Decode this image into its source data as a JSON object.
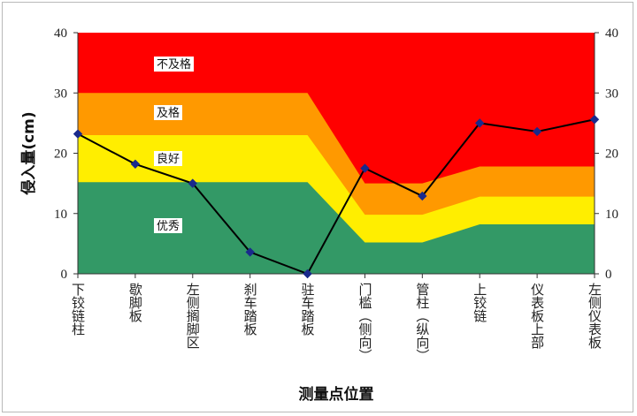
{
  "chart_data": {
    "type": "line",
    "ylabel": "侵入量(cm)",
    "xlabel": "测量点位置",
    "ylim": [
      0,
      40
    ],
    "yticks": [
      "0",
      "10",
      "20",
      "30",
      "40"
    ],
    "categories": [
      "下铰链柱",
      "歇脚板",
      "左侧搁脚区",
      "刹车踏板",
      "驻车踏板",
      "门槛（侧向）",
      "管柱（纵向）",
      "上铰链",
      "仪表板上部",
      "左侧仪表板"
    ],
    "series": [
      {
        "values": [
          23.2,
          18.2,
          15.0,
          3.6,
          0.0,
          17.5,
          12.9,
          25.0,
          23.6,
          25.6
        ]
      }
    ],
    "bands": [
      {
        "label": "优秀",
        "color": "#339966",
        "upper": [
          15.2,
          15.2,
          15.2,
          15.2,
          15.2,
          5.2,
          5.2,
          8.2,
          8.2,
          8.2
        ]
      },
      {
        "label": "良好",
        "color": "#ffee00",
        "upper": [
          23.0,
          23.0,
          23.0,
          23.0,
          23.0,
          9.8,
          9.8,
          12.8,
          12.8,
          12.8
        ]
      },
      {
        "label": "及格",
        "color": "#ff9900",
        "upper": [
          30.0,
          30.0,
          30.0,
          30.0,
          30.0,
          15.0,
          15.0,
          17.8,
          17.8,
          17.8
        ]
      },
      {
        "label": "不及格",
        "color": "#ff0000",
        "upper": [
          40,
          40,
          40,
          40,
          40,
          40,
          40,
          40,
          40,
          40
        ]
      }
    ],
    "line_color": "#000000",
    "marker_color": "#1a2a8c",
    "grid": false
  }
}
